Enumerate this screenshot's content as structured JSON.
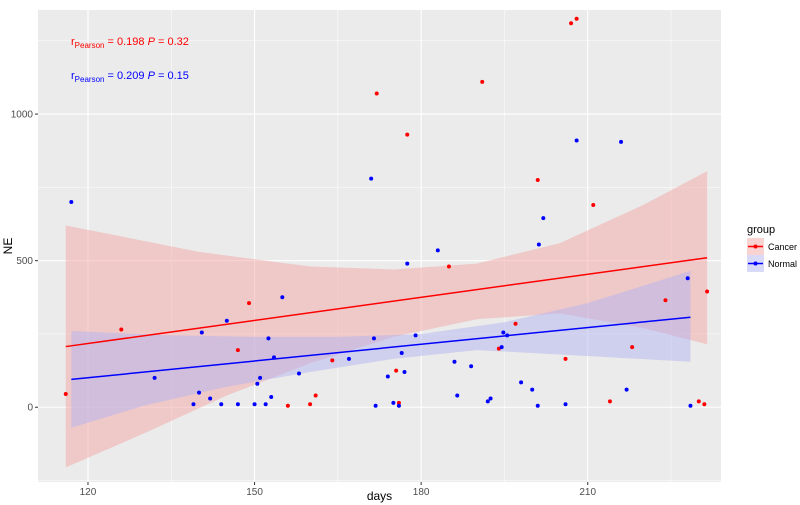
{
  "chart_data": {
    "type": "scatter",
    "xlabel": "days",
    "ylabel": "NE",
    "xlim": [
      111,
      234
    ],
    "ylim": [
      -255,
      1355
    ],
    "x_ticks": [
      120,
      150,
      180,
      210
    ],
    "y_ticks": [
      0,
      500,
      1000
    ],
    "grid": true,
    "legend": {
      "title": "group",
      "placement": "right",
      "entries": [
        "Cancer",
        "Normal"
      ]
    },
    "annotations": [
      {
        "r_symbol": "r",
        "subscript": "Pearson",
        "text": " = 0.198  ",
        "p_symbol": "P",
        "p_text": " = 0.32",
        "color": "#ff0000"
      },
      {
        "r_symbol": "r",
        "subscript": "Pearson",
        "text": " = 0.209  ",
        "p_symbol": "P",
        "p_text": " = 0.15",
        "color": "#0000ff"
      }
    ],
    "series": [
      {
        "name": "Cancer",
        "color": "#ff0000",
        "band_color": "#f4a6a6",
        "x_range": [
          116,
          231.5
        ],
        "fit": [
          [
            116,
            207
          ],
          [
            231.5,
            510
          ]
        ],
        "ci_upper": [
          [
            116,
            620
          ],
          [
            140,
            530
          ],
          [
            160,
            480
          ],
          [
            175,
            470
          ],
          [
            190,
            490
          ],
          [
            205,
            560
          ],
          [
            220,
            690
          ],
          [
            231.5,
            805
          ]
        ],
        "ci_lower": [
          [
            116,
            -205
          ],
          [
            130,
            -90
          ],
          [
            145,
            40
          ],
          [
            160,
            150
          ],
          [
            175,
            240
          ],
          [
            190,
            300
          ],
          [
            205,
            320
          ],
          [
            220,
            270
          ],
          [
            231.5,
            215
          ]
        ],
        "points": [
          [
            116,
            45
          ],
          [
            126,
            265
          ],
          [
            147,
            195
          ],
          [
            149,
            355
          ],
          [
            156,
            5
          ],
          [
            160,
            10
          ],
          [
            161,
            40
          ],
          [
            164,
            160
          ],
          [
            172,
            1070
          ],
          [
            175.5,
            125
          ],
          [
            176,
            15
          ],
          [
            177.5,
            930
          ],
          [
            185,
            480
          ],
          [
            191,
            1110
          ],
          [
            194,
            200
          ],
          [
            197,
            285
          ],
          [
            201,
            775
          ],
          [
            206,
            165
          ],
          [
            207,
            1310
          ],
          [
            208,
            1325
          ],
          [
            211,
            690
          ],
          [
            214,
            20
          ],
          [
            218,
            205
          ],
          [
            224,
            365
          ],
          [
            230,
            20
          ],
          [
            231,
            10
          ],
          [
            231.5,
            395
          ]
        ]
      },
      {
        "name": "Normal",
        "color": "#0000ff",
        "band_color": "#b3b3f2",
        "x_range": [
          117,
          228.5
        ],
        "fit": [
          [
            117,
            95
          ],
          [
            228.5,
            307
          ]
        ],
        "ci_upper": [
          [
            117,
            260
          ],
          [
            135,
            245
          ],
          [
            150,
            240
          ],
          [
            165,
            240
          ],
          [
            180,
            250
          ],
          [
            195,
            290
          ],
          [
            210,
            355
          ],
          [
            228.5,
            465
          ]
        ],
        "ci_lower": [
          [
            117,
            -70
          ],
          [
            130,
            5
          ],
          [
            145,
            70
          ],
          [
            160,
            120
          ],
          [
            175,
            165
          ],
          [
            190,
            195
          ],
          [
            205,
            180
          ],
          [
            228.5,
            155
          ]
        ],
        "points": [
          [
            117,
            700
          ],
          [
            132,
            100
          ],
          [
            139,
            10
          ],
          [
            140,
            50
          ],
          [
            140.5,
            255
          ],
          [
            142,
            30
          ],
          [
            144,
            10
          ],
          [
            145,
            295
          ],
          [
            147,
            10
          ],
          [
            150,
            10
          ],
          [
            150.5,
            80
          ],
          [
            151,
            100
          ],
          [
            152,
            10
          ],
          [
            152.5,
            235
          ],
          [
            153,
            35
          ],
          [
            153.5,
            170
          ],
          [
            155,
            375
          ],
          [
            158,
            115
          ],
          [
            167,
            165
          ],
          [
            171,
            780
          ],
          [
            171.5,
            235
          ],
          [
            171.8,
            5
          ],
          [
            174,
            105
          ],
          [
            175,
            15
          ],
          [
            176,
            5
          ],
          [
            176.5,
            185
          ],
          [
            177,
            120
          ],
          [
            177.5,
            490
          ],
          [
            179,
            245
          ],
          [
            183,
            535
          ],
          [
            186,
            155
          ],
          [
            186.5,
            40
          ],
          [
            189,
            140
          ],
          [
            192,
            20
          ],
          [
            192.5,
            30
          ],
          [
            194.5,
            205
          ],
          [
            194.8,
            255
          ],
          [
            195.5,
            245
          ],
          [
            198,
            85
          ],
          [
            200,
            60
          ],
          [
            201,
            5
          ],
          [
            201.2,
            555
          ],
          [
            202,
            645
          ],
          [
            206,
            10
          ],
          [
            208,
            910
          ],
          [
            216,
            905
          ],
          [
            217,
            60
          ],
          [
            228,
            440
          ],
          [
            228.5,
            5
          ]
        ]
      }
    ]
  }
}
